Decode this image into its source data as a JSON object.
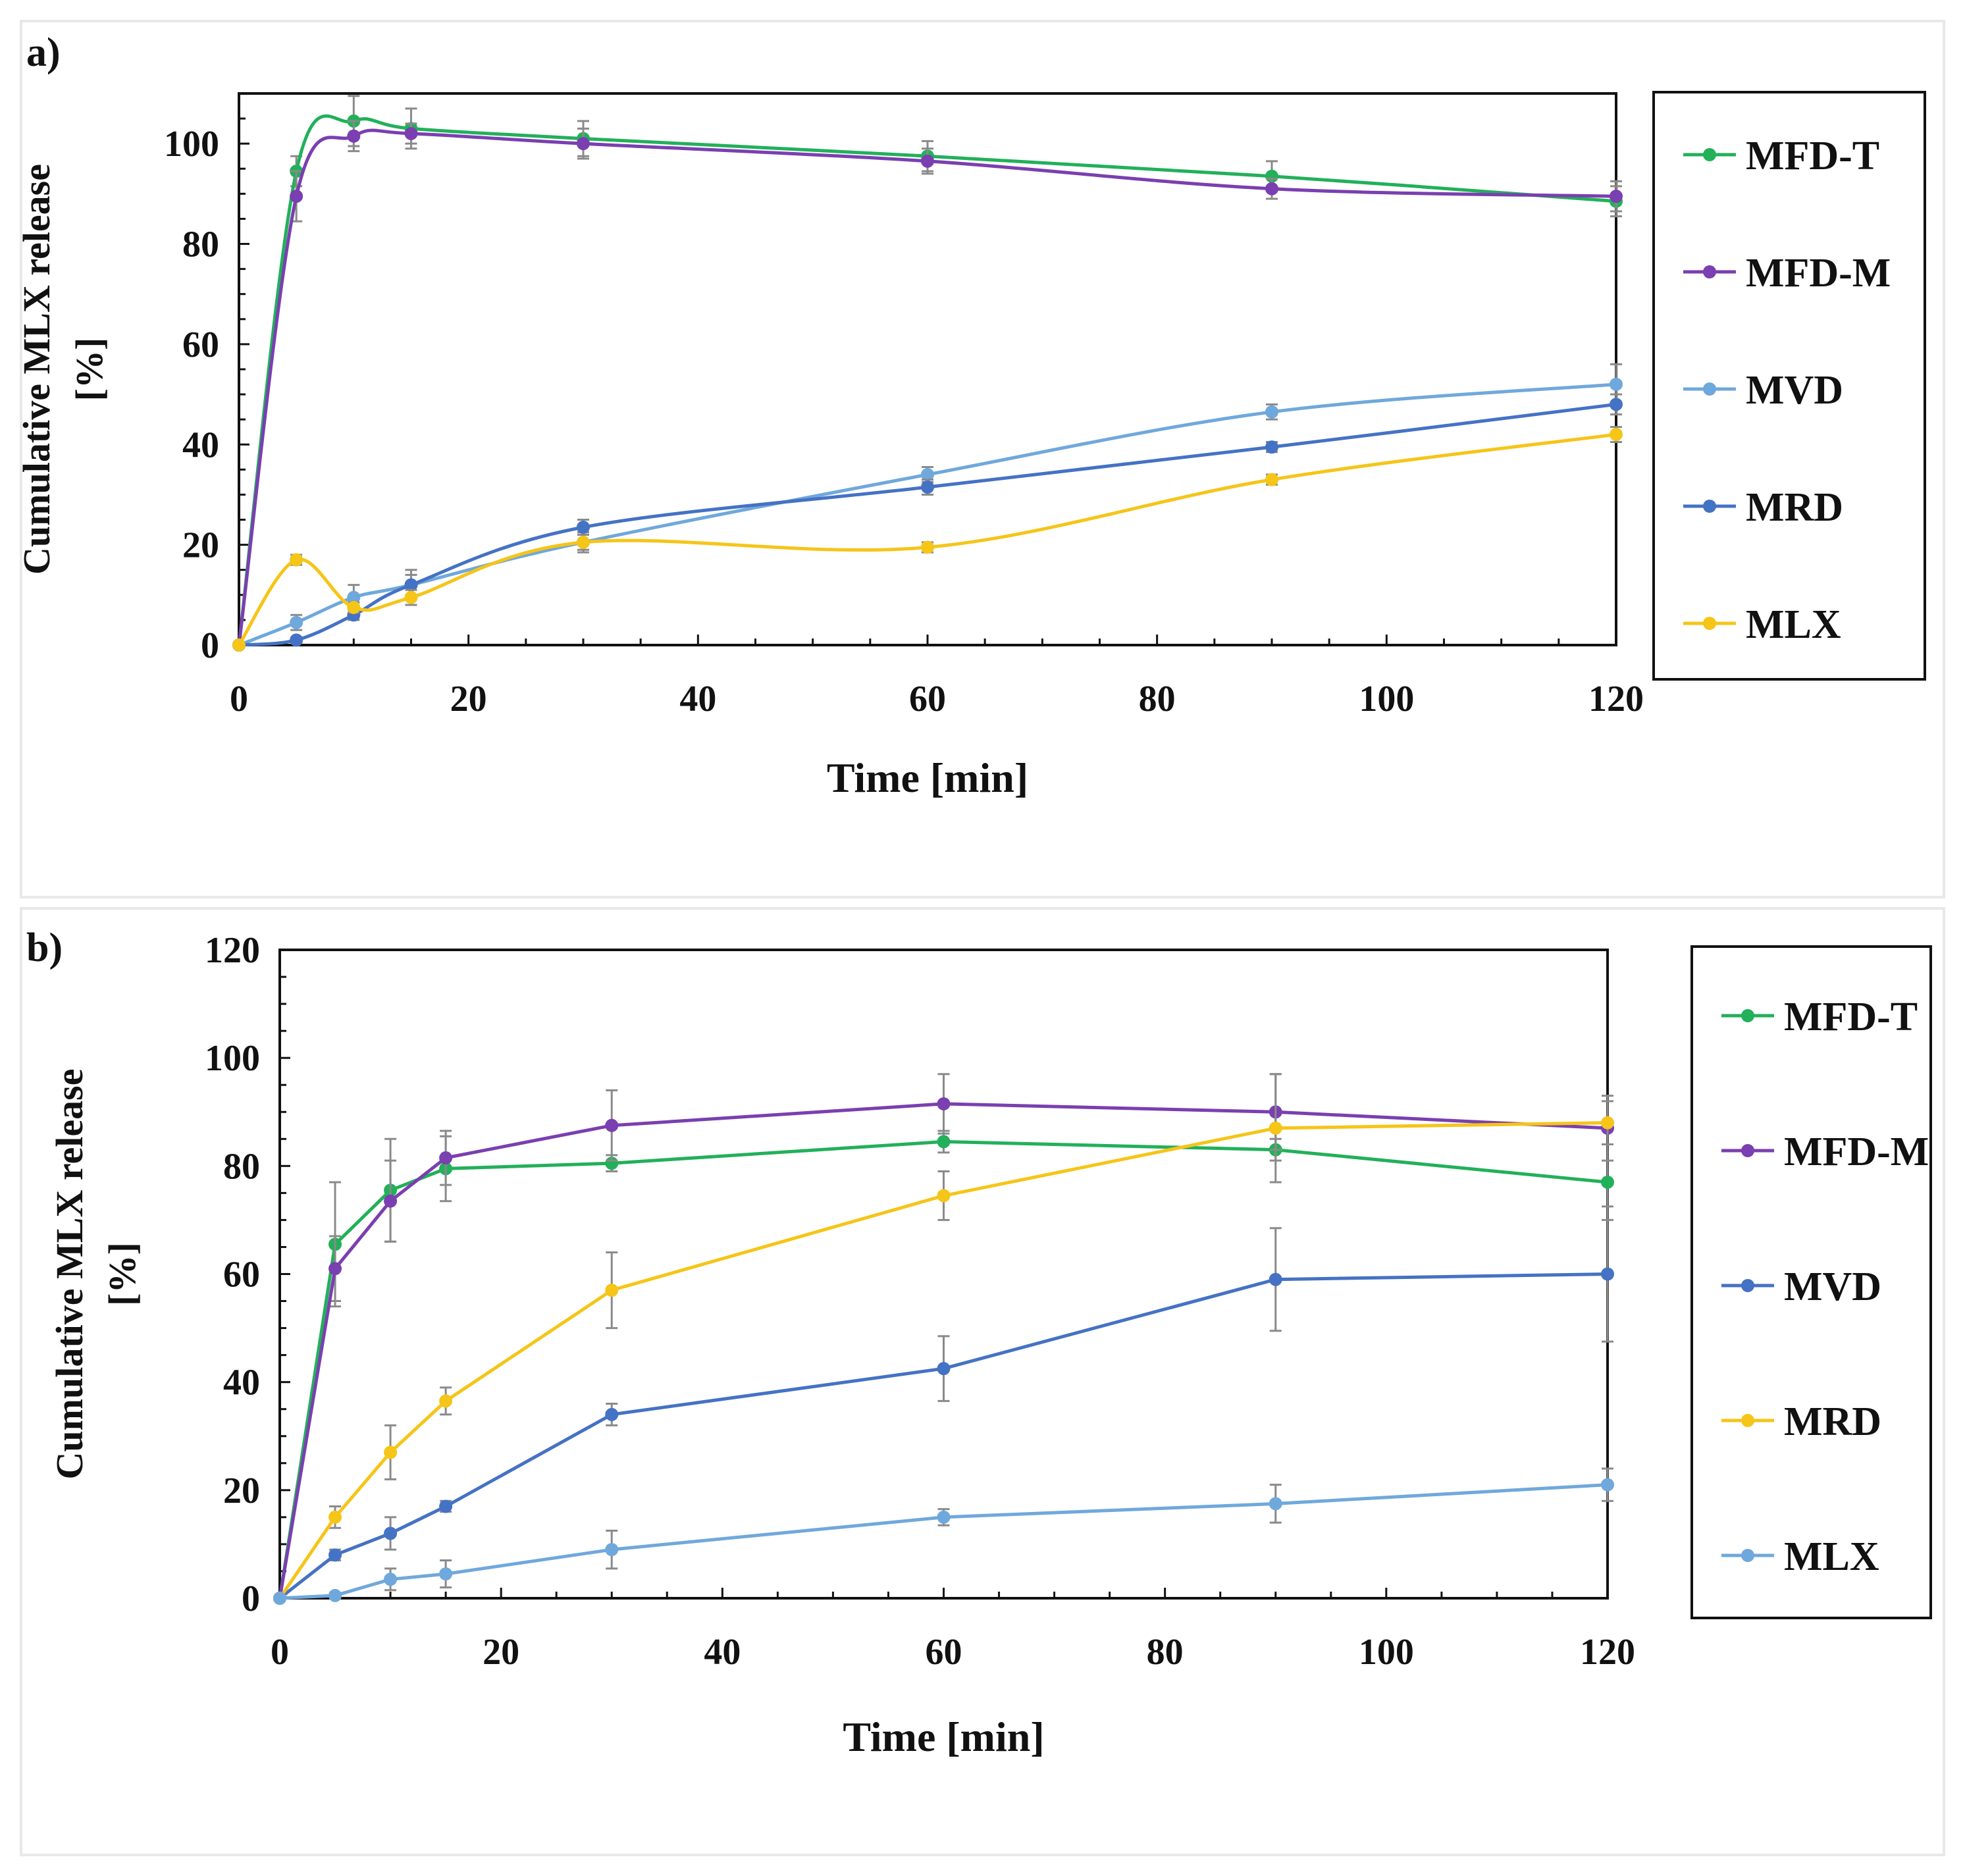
{
  "chart_data": [
    {
      "type": "line",
      "panel_label": "a)",
      "xlabel": "Time [min]",
      "ylabel_line1": "Cumulative MLX release",
      "ylabel_line2": "[%]",
      "xlim": [
        0,
        120
      ],
      "ylim": [
        0,
        110
      ],
      "xticks": [
        0,
        20,
        40,
        60,
        80,
        100,
        120
      ],
      "yticks": [
        0,
        20,
        40,
        60,
        80,
        100
      ],
      "x": [
        0,
        5,
        10,
        15,
        30,
        60,
        90,
        120
      ],
      "series": [
        {
          "name": "MFD-T",
          "color": "#22b05a",
          "values": [
            0,
            94.5,
            104.5,
            103,
            101,
            97.5,
            93.5,
            88.5
          ],
          "errors": [
            0,
            3,
            5,
            4,
            3.5,
            3,
            3,
            3
          ]
        },
        {
          "name": "MFD-M",
          "color": "#7a3fb0",
          "values": [
            0,
            89.5,
            101.5,
            102,
            100,
            96.5,
            91,
            89.5
          ],
          "errors": [
            0,
            5,
            3,
            2,
            3,
            2.5,
            2,
            3
          ]
        },
        {
          "name": "MVD",
          "color": "#6fa8dc",
          "values": [
            0,
            4.5,
            9.5,
            12,
            20.5,
            34,
            46.5,
            52
          ],
          "errors": [
            0,
            1.5,
            2.5,
            3,
            2,
            1.5,
            1.5,
            4
          ]
        },
        {
          "name": "MRD",
          "color": "#4472c4",
          "values": [
            0,
            1,
            6,
            12,
            23.5,
            31.5,
            39.5,
            48
          ],
          "errors": [
            0,
            0.5,
            1,
            2,
            1.5,
            1.5,
            1,
            2
          ]
        },
        {
          "name": "MLX",
          "color": "#f5c518",
          "values": [
            0,
            17,
            7.5,
            9.5,
            20.5,
            19.5,
            33,
            42
          ],
          "errors": [
            0,
            1,
            1,
            1.5,
            1.5,
            1,
            1,
            1.5
          ]
        }
      ]
    },
    {
      "type": "line",
      "panel_label": "b)",
      "xlabel": "Time [min]",
      "ylabel_line1": "Cumulative MLX release",
      "ylabel_line2": "[%]",
      "xlim": [
        0,
        120
      ],
      "ylim": [
        0,
        120
      ],
      "xticks": [
        0,
        20,
        40,
        60,
        80,
        100,
        120
      ],
      "yticks": [
        0,
        20,
        40,
        60,
        80,
        100,
        120
      ],
      "x": [
        0,
        5,
        10,
        15,
        30,
        60,
        90,
        120
      ],
      "series": [
        {
          "name": "MFD-T",
          "color": "#22b05a",
          "values": [
            0,
            65.5,
            75.5,
            79.5,
            80.5,
            84.5,
            83,
            77
          ],
          "errors": [
            0,
            11.5,
            9.5,
            6,
            1.5,
            2,
            2,
            7
          ]
        },
        {
          "name": "MFD-M",
          "color": "#7a3fb0",
          "values": [
            0,
            61,
            73.5,
            81.5,
            87.5,
            91.5,
            90,
            87
          ],
          "errors": [
            0,
            6,
            7.5,
            5,
            6.5,
            5.5,
            7,
            6
          ]
        },
        {
          "name": "MVD",
          "color": "#4472c4",
          "values": [
            0,
            8,
            12,
            17,
            34,
            42.5,
            59,
            60
          ],
          "errors": [
            0,
            1,
            3,
            1,
            2,
            6,
            9.5,
            12.5
          ]
        },
        {
          "name": "MRD",
          "color": "#f5c518",
          "values": [
            0,
            15,
            27,
            36.5,
            57,
            74.5,
            87,
            88
          ],
          "errors": [
            0,
            2,
            5,
            2.5,
            7,
            4.5,
            10,
            4
          ]
        },
        {
          "name": "MLX",
          "color": "#6fa8dc",
          "values": [
            0,
            0.5,
            3.5,
            4.5,
            9,
            15,
            17.5,
            21
          ],
          "errors": [
            0,
            0.5,
            2,
            2.5,
            3.5,
            1.5,
            3.5,
            3
          ]
        }
      ]
    }
  ]
}
